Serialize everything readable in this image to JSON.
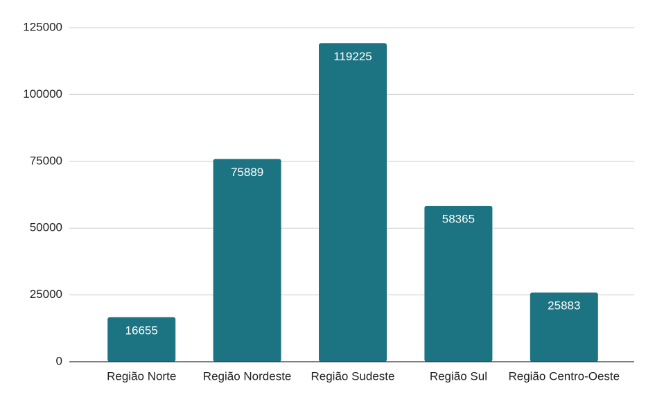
{
  "chart_data": {
    "type": "bar",
    "categories": [
      "Região Norte",
      "Região Nordeste",
      "Região Sudeste",
      "Região Sul",
      "Região Centro-Oeste"
    ],
    "values": [
      16655,
      75889,
      119225,
      58365,
      25883
    ],
    "color": "#1c7482",
    "ylim": [
      0,
      125000
    ],
    "yticks": [
      0,
      25000,
      50000,
      75000,
      100000,
      125000
    ],
    "grid": true
  }
}
